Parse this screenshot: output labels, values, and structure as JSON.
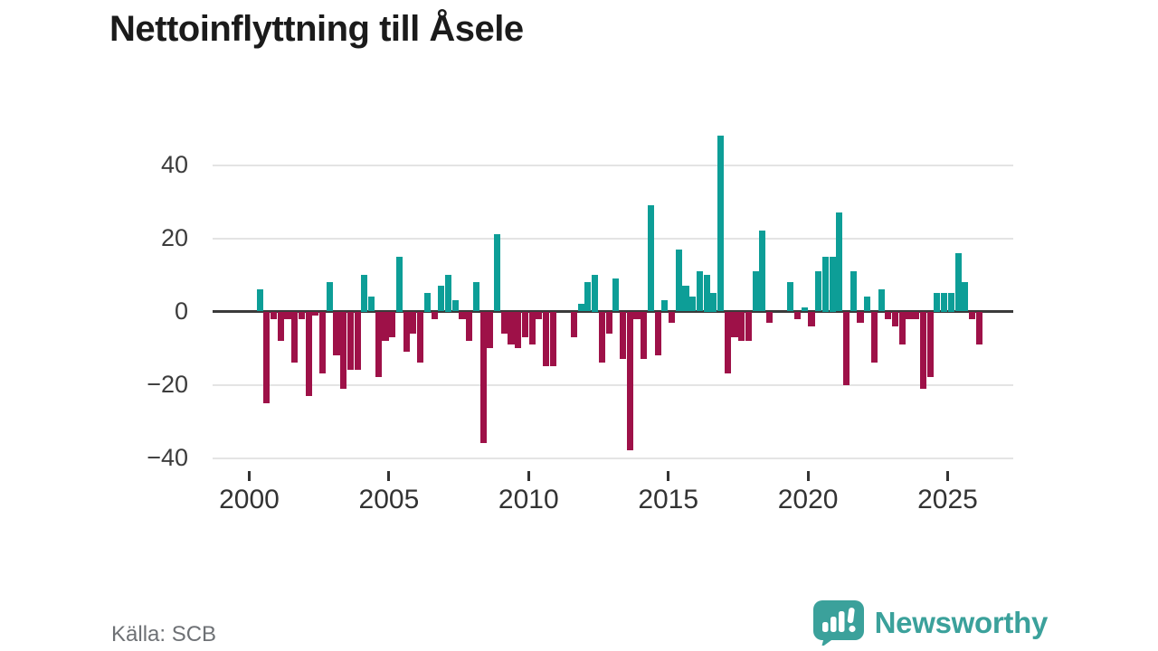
{
  "title": "Nettoinflyttning till Åsele",
  "source": "Källa: SCB",
  "brand": {
    "name": "Newsworthy"
  },
  "colors": {
    "positive": "#0d9e97",
    "negative": "#9e1148",
    "grid": "#e4e4e4",
    "zero_line": "#3a3a3a",
    "axis_text": "#3c3c3c",
    "title_text": "#1b1b1b",
    "source_text": "#6e7175",
    "brand_teal": "#3ba19b"
  },
  "chart_data": {
    "type": "bar",
    "title": "Nettoinflyttning till Åsele",
    "xlabel": "",
    "ylabel": "",
    "grid": "horizontal",
    "legend": "none",
    "y_ticks": [
      40,
      20,
      0,
      -20,
      -40
    ],
    "ylim": [
      -42,
      50
    ],
    "x_tick_years": [
      2000,
      2005,
      2010,
      2015,
      2020,
      2025
    ],
    "frequency": "quarterly",
    "start_year": 2000,
    "start_quarter": 2,
    "end_year": 2026,
    "end_quarter": 1,
    "values": [
      6,
      -25,
      -2,
      -8,
      -2,
      -14,
      -2,
      -23,
      -1,
      -17,
      8,
      -12,
      -21,
      -16,
      -16,
      10,
      4,
      -18,
      -8,
      -7,
      15,
      -11,
      -6,
      -14,
      5,
      -2,
      7,
      10,
      3,
      -2,
      -8,
      8,
      -36,
      -10,
      21,
      -6,
      -9,
      -10,
      -7,
      -9,
      -2,
      -15,
      -15,
      0,
      0,
      -7,
      2,
      8,
      10,
      -14,
      -6,
      9,
      -13,
      -38,
      -2,
      -13,
      29,
      -12,
      3,
      -3,
      17,
      7,
      4,
      11,
      10,
      5,
      48,
      -17,
      -7,
      -8,
      -8,
      11,
      22,
      -3,
      0,
      0,
      8,
      -2,
      1,
      -4,
      11,
      15,
      15,
      27,
      -20,
      11,
      -3,
      4,
      -14,
      6,
      -2,
      -4,
      -9,
      -2,
      -2,
      -21,
      -18,
      5,
      5,
      5,
      16,
      8,
      -2,
      -9
    ]
  }
}
